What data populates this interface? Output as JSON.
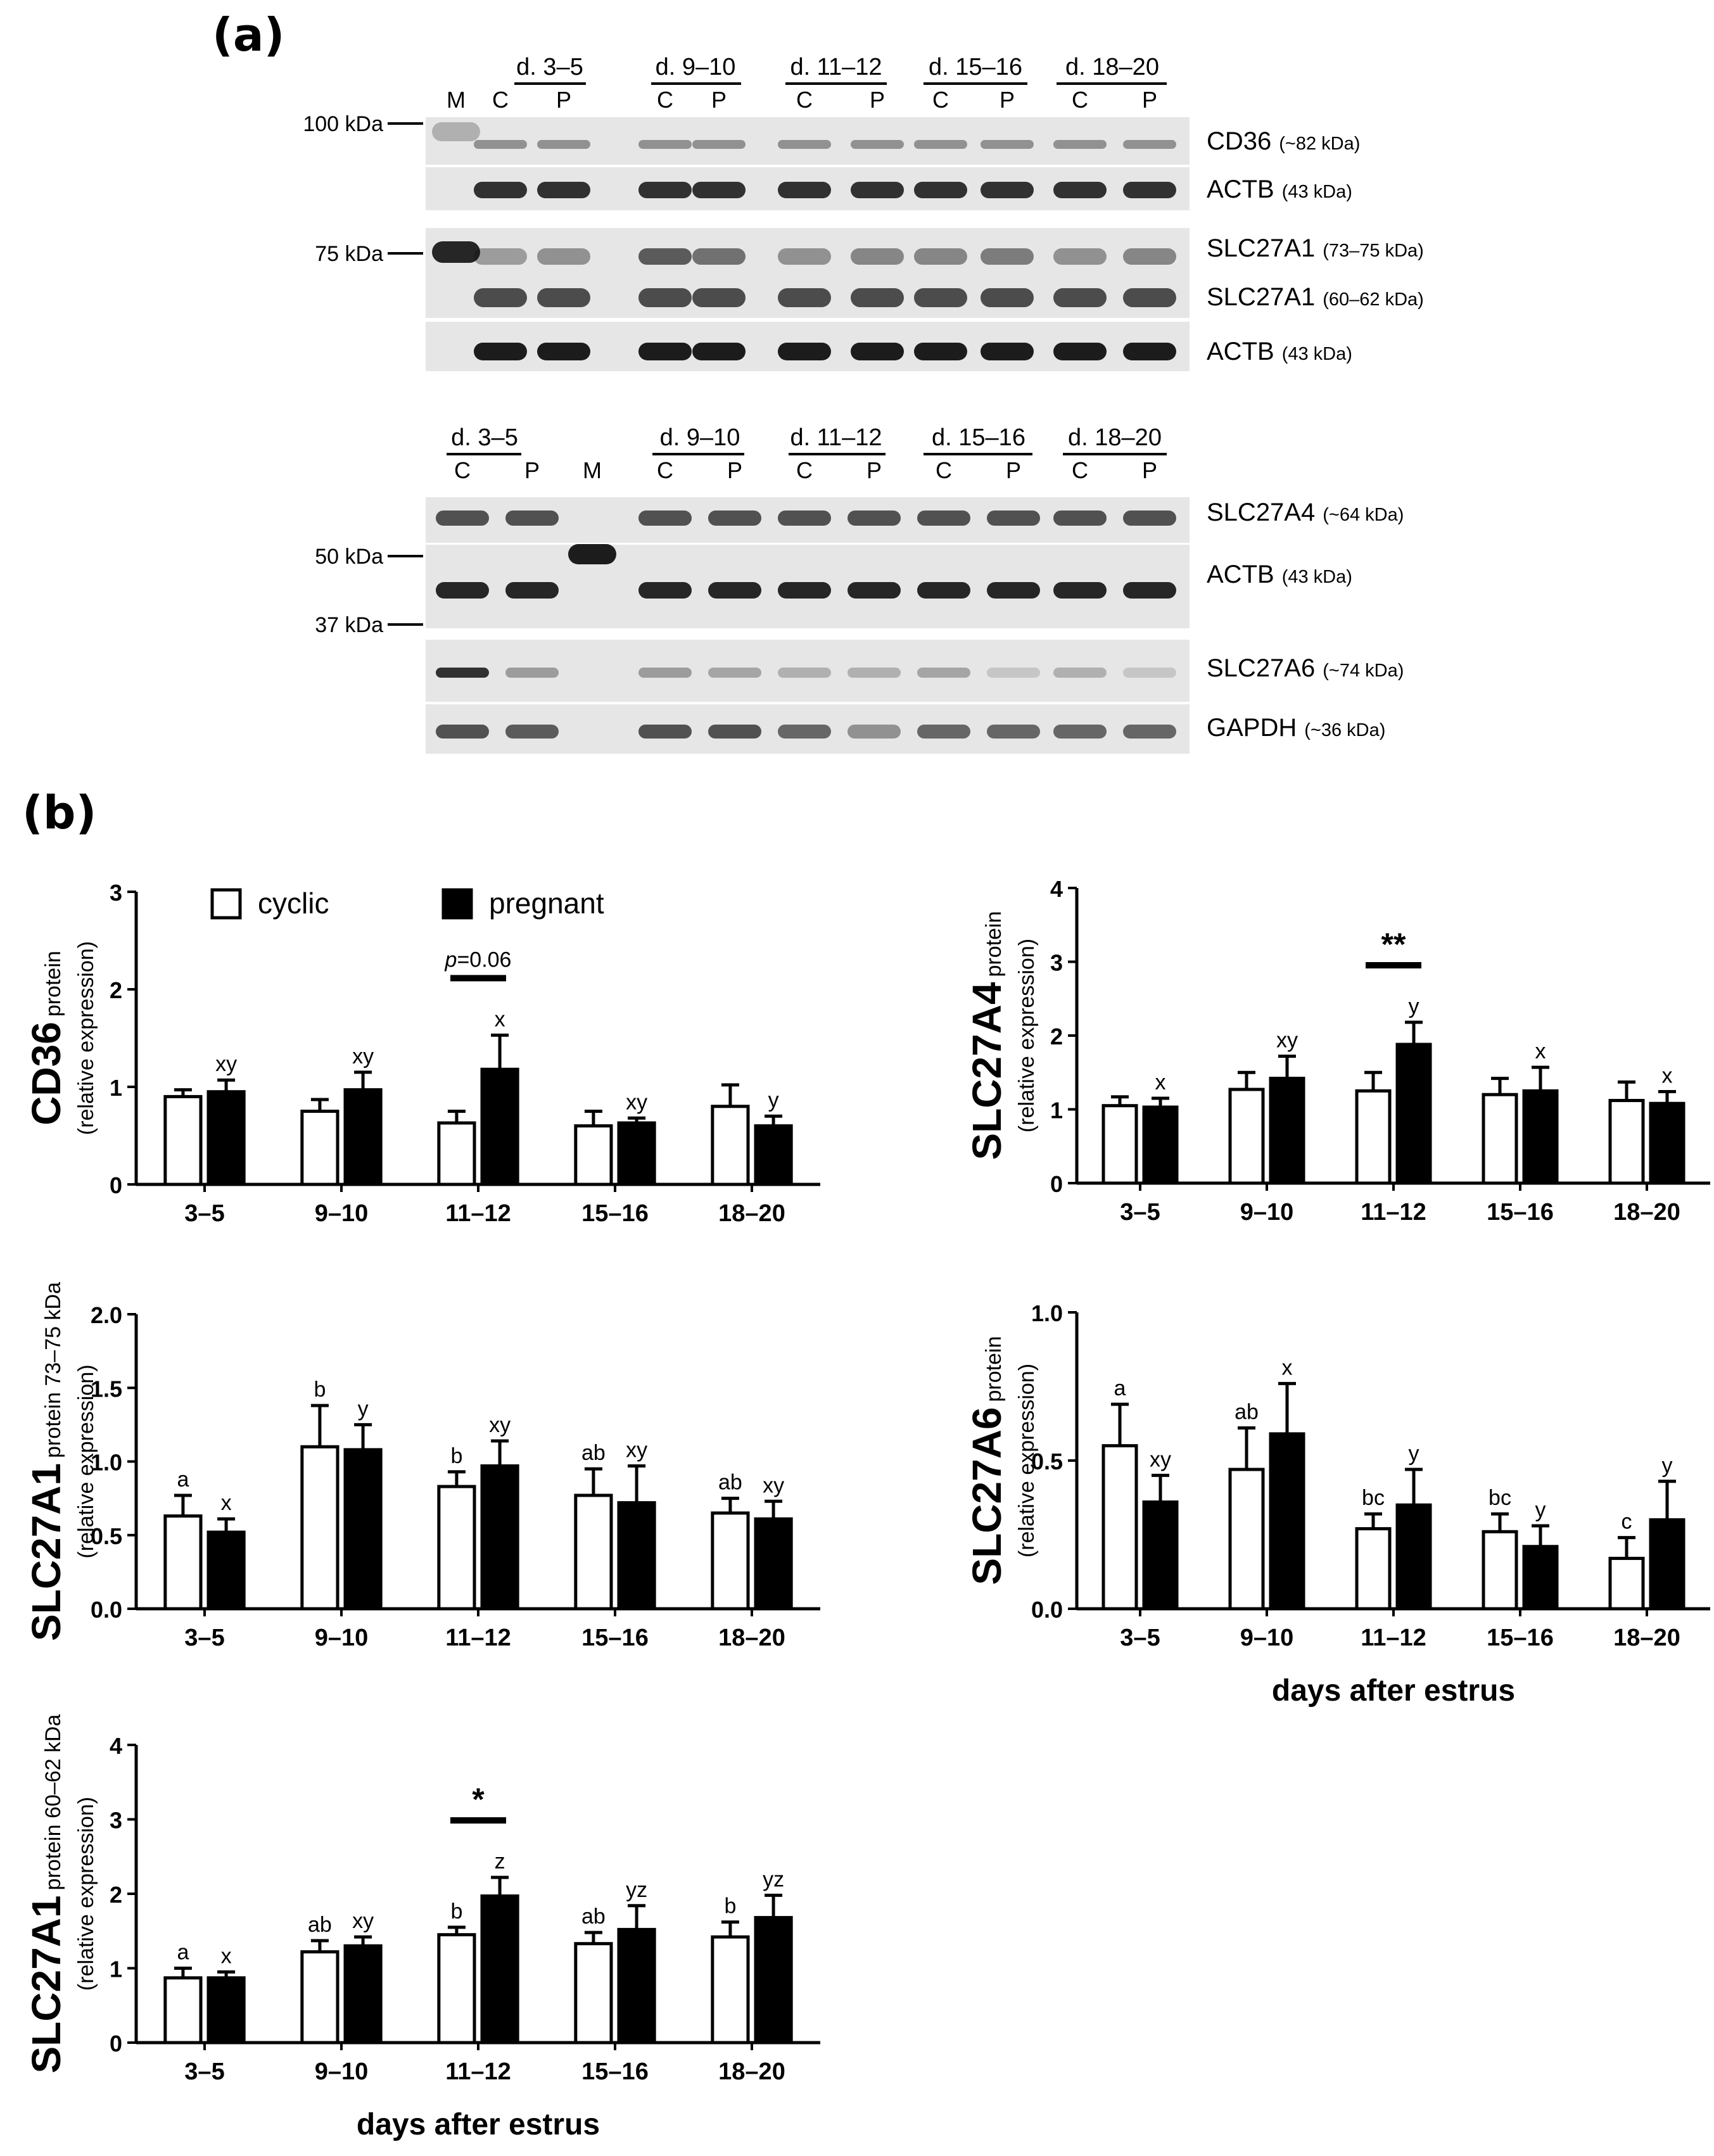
{
  "panel_a_label": "(a)",
  "panel_b_label": "(b)",
  "blot1": {
    "groups": [
      "d. 3–5",
      "d. 9–10",
      "d. 11–12",
      "d. 15–16",
      "d. 18–20"
    ],
    "marker_label": "M",
    "lane_labels": [
      "C",
      "P",
      "C",
      "P",
      "C",
      "P",
      "C",
      "P",
      "C",
      "P"
    ],
    "mw_markers": [
      "100 kDa",
      "75 kDa"
    ],
    "bands": [
      {
        "name": "CD36",
        "size": "(~82 kDa)"
      },
      {
        "name": "ACTB",
        "size": "(43 kDa)"
      },
      {
        "name": "SLC27A1",
        "size": "(73–75 kDa)"
      },
      {
        "name": "SLC27A1",
        "size": "(60–62 kDa)"
      },
      {
        "name": "ACTB",
        "size": "(43 kDa)"
      }
    ]
  },
  "blot2": {
    "groups": [
      "d. 3–5",
      "d. 9–10",
      "d. 11–12",
      "d. 15–16",
      "d. 18–20"
    ],
    "marker_label": "M",
    "lane_labels": [
      "C",
      "P",
      "C",
      "P",
      "C",
      "P",
      "C",
      "P",
      "C",
      "P"
    ],
    "mw_markers": [
      "50 kDa",
      "37 kDa"
    ],
    "bands": [
      {
        "name": "SLC27A4",
        "size": "(~64 kDa)"
      },
      {
        "name": "ACTB",
        "size": "(43 kDa)"
      },
      {
        "name": "SLC27A6",
        "size": "(~74 kDa)"
      },
      {
        "name": "GAPDH",
        "size": "(~36 kDa)"
      }
    ]
  },
  "legend": [
    {
      "name": "cyclic",
      "color": "#ffffff"
    },
    {
      "name": "pregnant",
      "color": "#000000"
    }
  ],
  "xlabel": "days after estrus",
  "chart_data": [
    {
      "type": "bar",
      "title_main": "CD36",
      "title_sub": "protein",
      "ylabel": "(relative expression)",
      "categories": [
        "3–5",
        "9–10",
        "11–12",
        "15–16",
        "18–20"
      ],
      "ylim": [
        0,
        3
      ],
      "yticks": [
        "0",
        "1",
        "2",
        "3"
      ],
      "series": [
        {
          "name": "cyclic",
          "values": [
            0.9,
            0.75,
            0.63,
            0.6,
            0.8
          ],
          "errors": [
            0.07,
            0.12,
            0.12,
            0.15,
            0.22
          ],
          "letters": [
            "",
            "",
            "",
            "",
            ""
          ]
        },
        {
          "name": "pregnant",
          "values": [
            0.95,
            0.97,
            1.18,
            0.63,
            0.6
          ],
          "errors": [
            0.12,
            0.18,
            0.35,
            0.05,
            0.1
          ],
          "letters": [
            "xy",
            "xy",
            "x",
            "xy",
            "y"
          ]
        }
      ],
      "annotations": [
        {
          "category": "11–12",
          "p_prefix": "p",
          "p_rest": "=0.06"
        }
      ]
    },
    {
      "type": "bar",
      "title_main": "SLC27A4",
      "title_sub": "protein",
      "ylabel": "(relative expression)",
      "categories": [
        "3–5",
        "9–10",
        "11–12",
        "15–16",
        "18–20"
      ],
      "ylim": [
        0,
        4
      ],
      "yticks": [
        "0",
        "1",
        "2",
        "3",
        "4"
      ],
      "series": [
        {
          "name": "cyclic",
          "values": [
            1.05,
            1.27,
            1.25,
            1.2,
            1.12
          ],
          "errors": [
            0.12,
            0.23,
            0.25,
            0.22,
            0.25
          ],
          "letters": [
            "",
            "",
            "",
            "",
            ""
          ]
        },
        {
          "name": "pregnant",
          "values": [
            1.03,
            1.42,
            1.88,
            1.25,
            1.08
          ],
          "errors": [
            0.12,
            0.3,
            0.3,
            0.32,
            0.16
          ],
          "letters": [
            "x",
            "xy",
            "y",
            "x",
            "x"
          ]
        }
      ],
      "annotations": [
        {
          "category": "11–12",
          "text": "**"
        }
      ]
    },
    {
      "type": "bar",
      "title_main": "SLC27A1",
      "title_sub": "protein 73–75 kDa",
      "ylabel": "(relative expression)",
      "categories": [
        "3–5",
        "9–10",
        "11–12",
        "15–16",
        "18–20"
      ],
      "ylim": [
        0,
        2
      ],
      "yticks": [
        "0.0",
        "0.5",
        "1.0",
        "1.5",
        "2.0"
      ],
      "series": [
        {
          "name": "cyclic",
          "values": [
            0.63,
            1.1,
            0.83,
            0.77,
            0.65
          ],
          "errors": [
            0.14,
            0.28,
            0.1,
            0.18,
            0.1
          ],
          "letters": [
            "a",
            "b",
            "b",
            "ab",
            "ab"
          ]
        },
        {
          "name": "pregnant",
          "values": [
            0.52,
            1.08,
            0.97,
            0.72,
            0.61
          ],
          "errors": [
            0.09,
            0.17,
            0.17,
            0.25,
            0.12
          ],
          "letters": [
            "x",
            "y",
            "xy",
            "xy",
            "xy"
          ]
        }
      ],
      "annotations": []
    },
    {
      "type": "bar",
      "title_main": "SLC27A6",
      "title_sub": "protein",
      "ylabel": "(relative expression)",
      "categories": [
        "3–5",
        "9–10",
        "11–12",
        "15–16",
        "18–20"
      ],
      "ylim": [
        0,
        1
      ],
      "yticks": [
        "0.0",
        "0.5",
        "1.0"
      ],
      "series": [
        {
          "name": "cyclic",
          "values": [
            0.55,
            0.47,
            0.27,
            0.26,
            0.17
          ],
          "errors": [
            0.14,
            0.14,
            0.05,
            0.06,
            0.07
          ],
          "letters": [
            "a",
            "ab",
            "bc",
            "bc",
            "c"
          ]
        },
        {
          "name": "pregnant",
          "values": [
            0.36,
            0.59,
            0.35,
            0.21,
            0.3
          ],
          "errors": [
            0.09,
            0.17,
            0.12,
            0.07,
            0.13
          ],
          "letters": [
            "xy",
            "x",
            "y",
            "y",
            "y"
          ]
        }
      ],
      "annotations": []
    },
    {
      "type": "bar",
      "title_main": "SLC27A1",
      "title_sub": "protein 60–62 kDa",
      "ylabel": "(relative expression)",
      "categories": [
        "3–5",
        "9–10",
        "11–12",
        "15–16",
        "18–20"
      ],
      "ylim": [
        0,
        4
      ],
      "yticks": [
        "0",
        "1",
        "2",
        "3",
        "4"
      ],
      "series": [
        {
          "name": "cyclic",
          "values": [
            0.87,
            1.22,
            1.45,
            1.33,
            1.42
          ],
          "errors": [
            0.13,
            0.15,
            0.1,
            0.15,
            0.2
          ],
          "letters": [
            "a",
            "ab",
            "b",
            "ab",
            "b"
          ]
        },
        {
          "name": "pregnant",
          "values": [
            0.87,
            1.3,
            1.97,
            1.52,
            1.68
          ],
          "errors": [
            0.08,
            0.12,
            0.25,
            0.32,
            0.3
          ],
          "letters": [
            "x",
            "xy",
            "z",
            "yz",
            "yz"
          ]
        }
      ],
      "annotations": [
        {
          "category": "11–12",
          "text": "*"
        }
      ]
    }
  ]
}
